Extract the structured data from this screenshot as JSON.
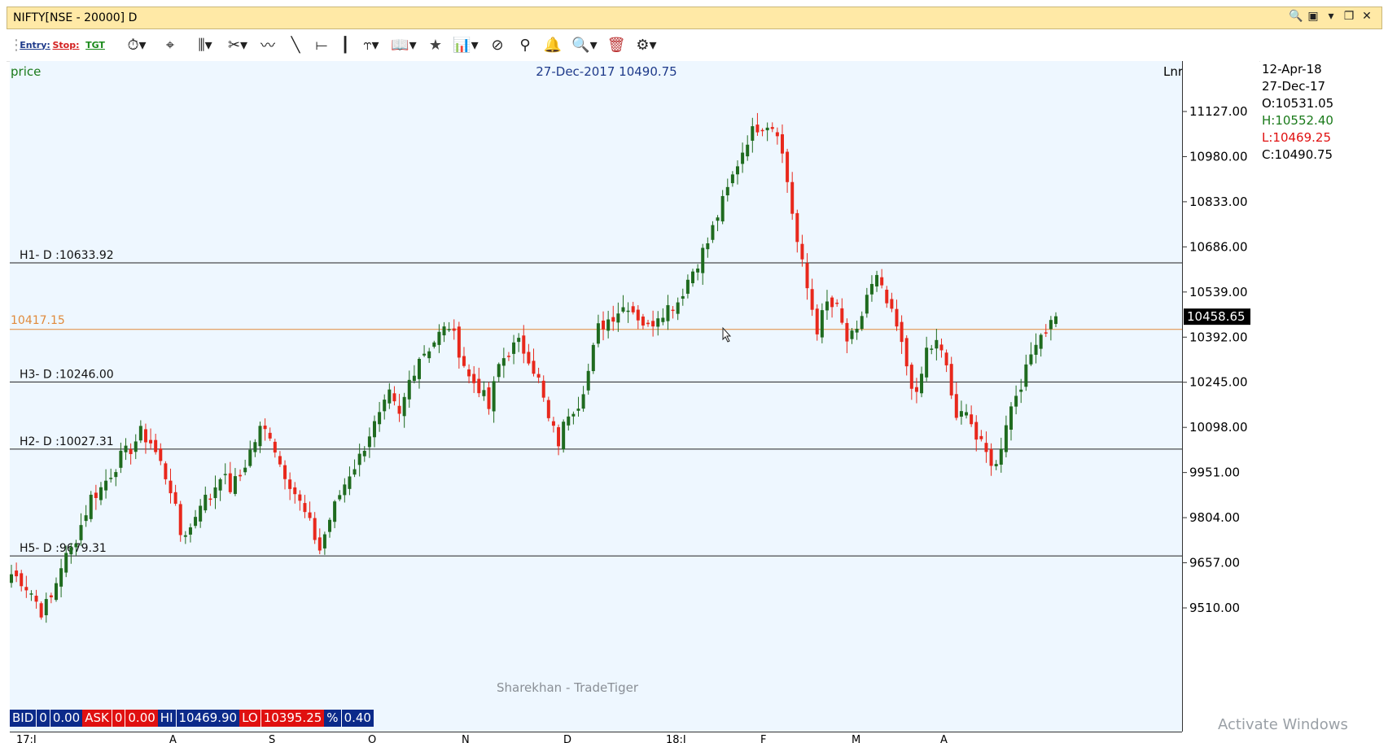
{
  "window": {
    "title": "NIFTY[NSE - 20000] D"
  },
  "window_controls": [
    "search-window-icon",
    "layout-icon",
    "dropdown-icon",
    "restore-icon",
    "close-icon"
  ],
  "toolbar": {
    "entry_label": "Entry:",
    "stop_label": "Stop:",
    "tgt_label": "TGT"
  },
  "chart": {
    "label_price": "price",
    "cursor_readout": "27-Dec-2017 10490.75",
    "scale_mode": "Lnr",
    "watermark": "Sharekhan - TradeTiger",
    "current_price_tag": "10458.65",
    "hover_line_label": "10417.15",
    "levels": [
      {
        "label": "H1- D :10633.92",
        "value": 10633.92
      },
      {
        "label": "H3- D :10246.00",
        "value": 10246.0
      },
      {
        "label": "H2- D :10027.31",
        "value": 10027.31
      },
      {
        "label": "H5- D :9679.31",
        "value": 9679.31
      }
    ],
    "y_ticks": [
      "11127.00",
      "10980.00",
      "10833.00",
      "10686.00",
      "10539.00",
      "10392.00",
      "10245.00",
      "10098.00",
      "9951.00",
      "9804.00",
      "9657.00",
      "9510.00"
    ],
    "x_ticks": [
      "17:J",
      "A",
      "S",
      "O",
      "N",
      "D",
      "18:J",
      "F",
      "M",
      "A"
    ]
  },
  "ohlc": {
    "date1": "12-Apr-18",
    "date2": "27-Dec-17",
    "open": "O:10531.05",
    "high": "H:10552.40",
    "low": "L:10469.25",
    "close": "C:10490.75"
  },
  "quote_bar": {
    "bid_label": "BID",
    "bid_qty": "0",
    "bid_price": "0.00",
    "ask_label": "ASK",
    "ask_qty": "0",
    "ask_price": "0.00",
    "hi_label": "HI",
    "hi_value": "10469.90",
    "lo_label": "LO",
    "lo_value": "10395.25",
    "pct_label": "%",
    "pct_value": "0.40"
  },
  "os_notice": "Activate Windows",
  "colors": {
    "up": "#1f6b1f",
    "down": "#e8281c",
    "chart_bg": "#eef7ff",
    "title_bg": "#ffe9a6",
    "hover_line": "#e08a3c"
  },
  "chart_data": {
    "type": "candlestick",
    "series_close_approx": [
      9620,
      9600,
      9560,
      9500,
      9540,
      9650,
      9700,
      9780,
      9870,
      9900,
      9950,
      10000,
      10030,
      10080,
      10050,
      9980,
      9900,
      9750,
      9770,
      9860,
      9870,
      9950,
      9900,
      9940,
      10020,
      10090,
      10080,
      9980,
      9920,
      9850,
      9780,
      9700,
      9800,
      9880,
      9950,
      10000,
      10080,
      10130,
      10200,
      10130,
      10250,
      10330,
      10360,
      10400,
      10430,
      10350,
      10260,
      10230,
      10160,
      10300,
      10350,
      10370,
      10330,
      10250,
      10120,
      10050,
      10150,
      10180,
      10280,
      10420,
      10450,
      10480,
      10500,
      10460,
      10420,
      10470,
      10490,
      10510,
      10580,
      10640,
      10700,
      10790,
      10870,
      10960,
      11040,
      11080,
      11090,
      11070,
      10900,
      10700,
      10550,
      10420,
      10500,
      10480,
      10380,
      10400,
      10530,
      10580,
      10500,
      10420,
      10300,
      10190,
      10350,
      10370,
      10300,
      10110,
      10170,
      10060,
      10010,
      9970,
      10120,
      10210,
      10280,
      10390,
      10420,
      10460
    ]
  }
}
